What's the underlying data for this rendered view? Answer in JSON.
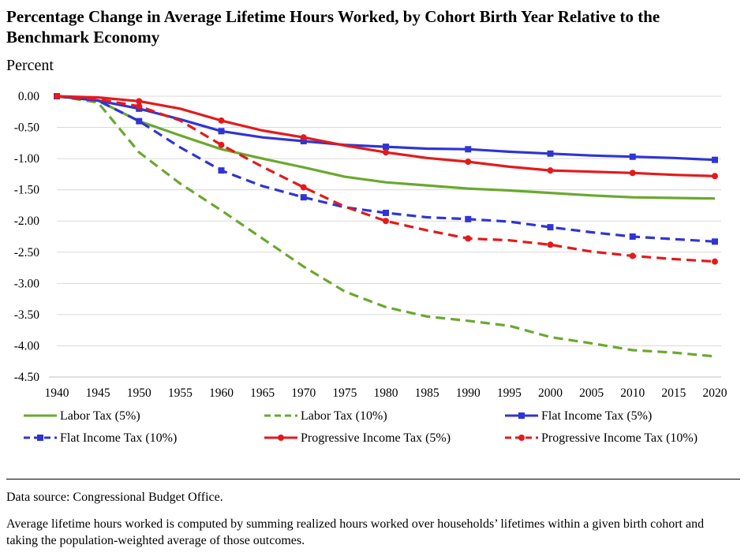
{
  "title": "Percentage Change in Average Lifetime Hours Worked, by Cohort Birth Year Relative to the Benchmark Economy",
  "y_unit_label": "Percent",
  "footer": {
    "source": "Data source: Congressional Budget Office.",
    "note": "Average lifetime hours worked is computed by summing realized hours worked over households’ lifetimes within a given birth cohort and taking the population-weighted average of those outcomes."
  },
  "chart_data": {
    "type": "line",
    "xlim": [
      1940,
      2020
    ],
    "ylim": [
      -4.5,
      0
    ],
    "x_ticks": [
      "1940",
      "1945",
      "1950",
      "1955",
      "1960",
      "1965",
      "1970",
      "1975",
      "1980",
      "1985",
      "1990",
      "1995",
      "2000",
      "2005",
      "2010",
      "2015",
      "2020"
    ],
    "y_ticks": [
      "0.00",
      "-0.50",
      "-1.00",
      "-1.50",
      "-2.00",
      "-2.50",
      "-3.00",
      "-3.50",
      "-4.00",
      "-4.50"
    ],
    "grid": true,
    "legend_position": "bottom",
    "x": [
      1940,
      1945,
      1950,
      1955,
      1960,
      1965,
      1970,
      1975,
      1980,
      1985,
      1990,
      1995,
      2000,
      2005,
      2010,
      2015,
      2020
    ],
    "series": [
      {
        "name": "Labor Tax (5%)",
        "color": "#6aa82e",
        "dash": "solid",
        "marker": "none",
        "values": [
          0.0,
          -0.07,
          -0.4,
          -0.63,
          -0.85,
          -1.0,
          -1.14,
          -1.29,
          -1.38,
          -1.43,
          -1.48,
          -1.51,
          -1.55,
          -1.59,
          -1.62,
          -1.63,
          -1.64
        ]
      },
      {
        "name": "Labor Tax (10%)",
        "color": "#6aa82e",
        "dash": "dashed",
        "marker": "none",
        "values": [
          0.0,
          -0.1,
          -0.9,
          -1.4,
          -1.83,
          -2.28,
          -2.73,
          -3.13,
          -3.38,
          -3.53,
          -3.6,
          -3.68,
          -3.86,
          -3.96,
          -4.07,
          -4.11,
          -4.17
        ]
      },
      {
        "name": "Flat Income Tax (5%)",
        "color": "#2f35d4",
        "dash": "solid",
        "marker": "square",
        "values": [
          0.0,
          -0.07,
          -0.2,
          -0.37,
          -0.56,
          -0.66,
          -0.72,
          -0.78,
          -0.81,
          -0.84,
          -0.85,
          -0.89,
          -0.92,
          -0.95,
          -0.97,
          -0.99,
          -1.02
        ]
      },
      {
        "name": "Flat Income Tax (10%)",
        "color": "#2f35d4",
        "dash": "dashed",
        "marker": "square",
        "values": [
          0.0,
          -0.07,
          -0.4,
          -0.82,
          -1.19,
          -1.44,
          -1.62,
          -1.78,
          -1.87,
          -1.94,
          -1.97,
          -2.01,
          -2.1,
          -2.18,
          -2.25,
          -2.29,
          -2.33
        ]
      },
      {
        "name": "Progressive Income Tax (5%)",
        "color": "#e31a1c",
        "dash": "solid",
        "marker": "circle",
        "values": [
          0.0,
          -0.02,
          -0.08,
          -0.2,
          -0.39,
          -0.55,
          -0.66,
          -0.79,
          -0.9,
          -0.99,
          -1.05,
          -1.13,
          -1.19,
          -1.21,
          -1.23,
          -1.26,
          -1.28
        ]
      },
      {
        "name": "Progressive Income Tax (10%)",
        "color": "#e31a1c",
        "dash": "dashed",
        "marker": "circle",
        "values": [
          0.0,
          -0.05,
          -0.16,
          -0.39,
          -0.78,
          -1.13,
          -1.46,
          -1.77,
          -2.0,
          -2.15,
          -2.28,
          -2.31,
          -2.38,
          -2.49,
          -2.56,
          -2.61,
          -2.65
        ]
      }
    ]
  }
}
